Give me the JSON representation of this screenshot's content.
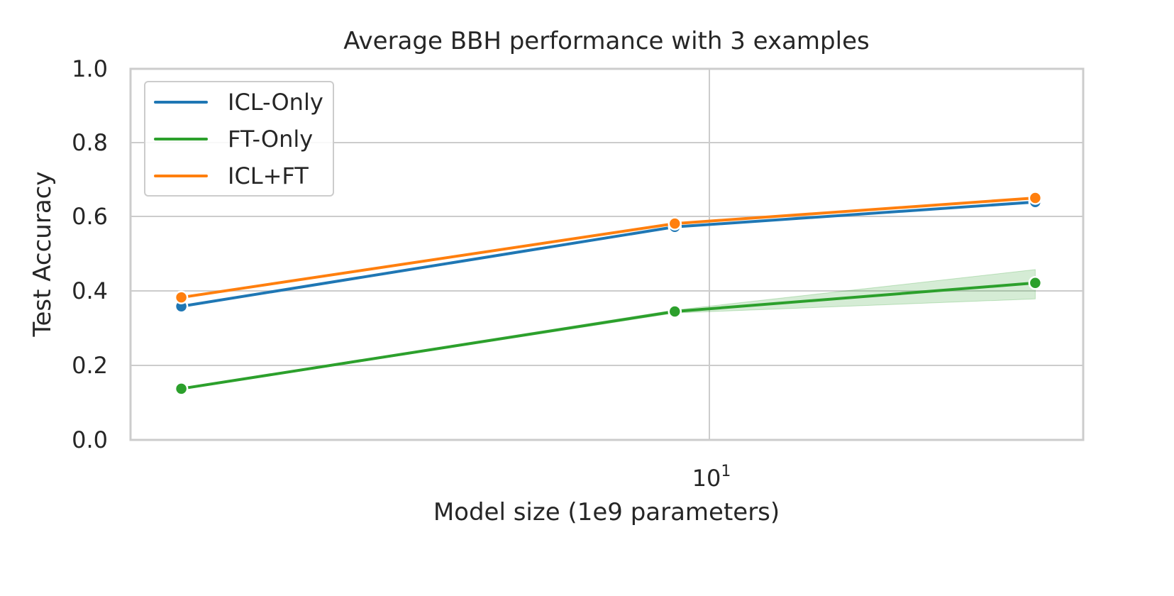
{
  "chart_data": {
    "type": "line",
    "title": "Average BBH performance with 3 examples",
    "xlabel": "Model size (1e9 parameters)",
    "ylabel": "Test Accuracy",
    "xscale": "log",
    "x": [
      2,
      9,
      27
    ],
    "xtick_labels": [
      "10^1"
    ],
    "ylim": [
      0.0,
      1.0
    ],
    "yticks": [
      "0.0",
      "0.2",
      "0.4",
      "0.6",
      "0.8",
      "1.0"
    ],
    "grid": true,
    "legend_position": "upper left",
    "series": [
      {
        "name": "ICL-Only",
        "color": "#1f77b4",
        "values": [
          0.36,
          0.574,
          0.641
        ]
      },
      {
        "name": "FT-Only",
        "color": "#2ca02c",
        "values": [
          0.138,
          0.346,
          0.423
        ],
        "ci_lower": [
          0.136,
          0.342,
          0.38
        ],
        "ci_upper": [
          0.14,
          0.35,
          0.459
        ]
      },
      {
        "name": "ICL+FT",
        "color": "#ff7f0e",
        "values": [
          0.384,
          0.583,
          0.652
        ]
      }
    ]
  },
  "labels": {
    "title": "Average BBH performance with 3 examples",
    "xlabel": "Model size (1e9 parameters)",
    "ylabel": "Test Accuracy",
    "xtick_base": "10",
    "xtick_exp": "1",
    "yticks": [
      "0.0",
      "0.2",
      "0.4",
      "0.6",
      "0.8",
      "1.0"
    ]
  },
  "legend": [
    {
      "label": "ICL-Only",
      "color": "#1f77b4"
    },
    {
      "label": "FT-Only",
      "color": "#2ca02c"
    },
    {
      "label": "ICL+FT",
      "color": "#ff7f0e"
    }
  ]
}
